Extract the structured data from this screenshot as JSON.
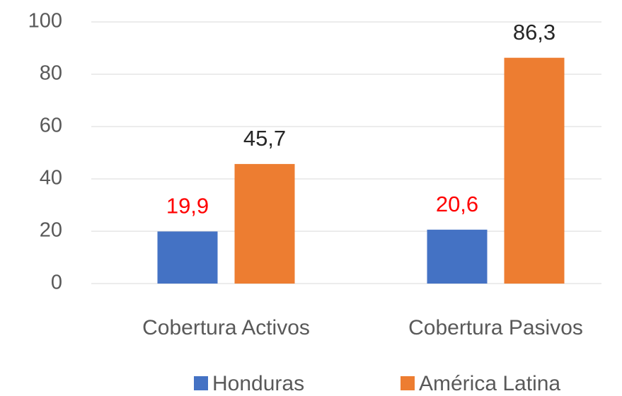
{
  "chart_data": {
    "type": "bar",
    "categories": [
      "Cobertura Activos",
      "Cobertura Pasivos"
    ],
    "series": [
      {
        "name": "Honduras",
        "color": "#4472c4",
        "label_color": "#ff0000",
        "values": [
          19.9,
          20.6
        ],
        "value_labels": [
          "19,9",
          "20,6"
        ]
      },
      {
        "name": "América Latina",
        "color": "#ed7d31",
        "label_color": "#262626",
        "values": [
          45.7,
          86.3
        ],
        "value_labels": [
          "45,7",
          "86,3"
        ]
      }
    ],
    "ylim": [
      0,
      100
    ],
    "yticks": [
      0,
      20,
      40,
      60,
      80,
      100
    ],
    "grid": true,
    "legend": "bottom"
  }
}
